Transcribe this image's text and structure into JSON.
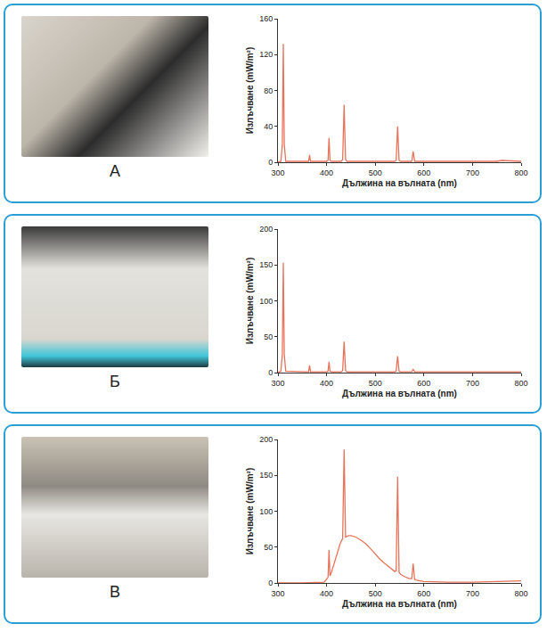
{
  "chart_data": [
    {
      "type": "line",
      "annotations": [
        "А"
      ],
      "x_label": "Дължина на вълната (nm)",
      "y_label": "Излъчване (mW/m²)",
      "x": [
        300,
        306,
        309,
        311,
        313,
        316,
        360,
        363,
        365,
        367,
        370,
        400,
        403,
        405,
        407,
        410,
        430,
        433,
        436,
        439,
        442,
        540,
        543,
        546,
        549,
        552,
        572,
        575,
        578,
        581,
        584,
        700,
        750,
        760,
        800
      ],
      "values": [
        0,
        1,
        20,
        132,
        20,
        1,
        1,
        1,
        8,
        1,
        1,
        1,
        2,
        27,
        2,
        1,
        1,
        3,
        64,
        3,
        1,
        1,
        2,
        40,
        2,
        1,
        1,
        1,
        12,
        1,
        1,
        1,
        1,
        2,
        1
      ],
      "color": "#e8735a",
      "xlim": [
        300,
        800
      ],
      "xticks": [
        300,
        400,
        500,
        600,
        700,
        800
      ],
      "ylim": [
        0,
        160
      ],
      "yticks": [
        0,
        40,
        80,
        120,
        160
      ],
      "grid": false
    },
    {
      "type": "line",
      "annotations": [
        "Б"
      ],
      "x_label": "Дължина на вълната (nm)",
      "y_label": "Излъчване (mW/m²)",
      "x": [
        300,
        306,
        309,
        311,
        313,
        316,
        360,
        363,
        365,
        367,
        370,
        400,
        403,
        405,
        407,
        410,
        430,
        433,
        436,
        439,
        442,
        540,
        543,
        546,
        549,
        552,
        572,
        575,
        578,
        581,
        584,
        600,
        700,
        800
      ],
      "values": [
        0,
        2,
        25,
        153,
        25,
        2,
        1,
        1,
        10,
        1,
        1,
        1,
        2,
        15,
        2,
        1,
        1,
        3,
        43,
        3,
        1,
        1,
        2,
        23,
        2,
        1,
        1,
        1,
        5,
        1,
        1,
        1,
        1,
        1
      ],
      "color": "#e8735a",
      "xlim": [
        300,
        800
      ],
      "xticks": [
        300,
        400,
        500,
        600,
        700,
        800
      ],
      "ylim": [
        0,
        200
      ],
      "yticks": [
        0,
        50,
        100,
        150,
        200
      ],
      "grid": false
    },
    {
      "type": "line",
      "annotations": [
        "В"
      ],
      "x_label": "Дължина на вълната (nm)",
      "y_label": "Излъчване (mW/m²)",
      "x": [
        300,
        350,
        395,
        400,
        403,
        405,
        407,
        410,
        420,
        428,
        433,
        436,
        439,
        445,
        450,
        460,
        470,
        480,
        490,
        500,
        510,
        520,
        530,
        540,
        543,
        546,
        549,
        552,
        560,
        570,
        575,
        578,
        581,
        585,
        600,
        650,
        700,
        750,
        800
      ],
      "values": [
        0,
        0,
        1,
        5,
        8,
        46,
        10,
        15,
        38,
        55,
        62,
        186,
        64,
        66,
        66,
        64,
        60,
        55,
        48,
        40,
        33,
        27,
        21,
        16,
        17,
        148,
        15,
        12,
        9,
        6,
        6,
        27,
        5,
        4,
        2,
        1,
        1,
        2,
        3
      ],
      "color": "#e8735a",
      "xlim": [
        300,
        800
      ],
      "xticks": [
        300,
        400,
        500,
        600,
        700,
        800
      ],
      "ylim": [
        0,
        200
      ],
      "yticks": [
        0,
        50,
        100,
        150,
        200
      ],
      "grid": false
    }
  ]
}
